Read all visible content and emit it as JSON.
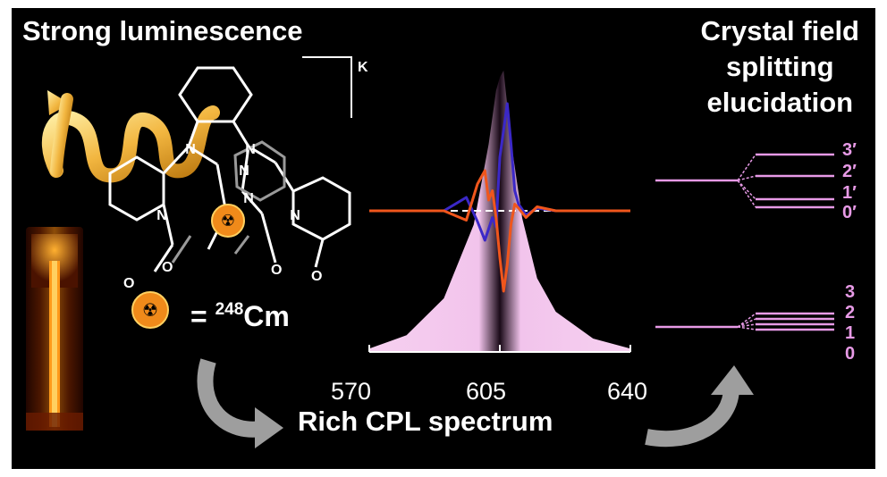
{
  "headings": {
    "left": "Strong luminescence",
    "right_lines": [
      "Crystal field",
      "splitting",
      "elucidation"
    ],
    "bottom": "Rich CPL spectrum"
  },
  "structure": {
    "counterion": "K",
    "element_label_prefix": "= ",
    "isotope_mass": "248",
    "element_symbol": "Cm",
    "atom_labels": [
      "N",
      "N",
      "N",
      "N",
      "N",
      "N"
    ],
    "oxygen_label": "O"
  },
  "chart_data": {
    "type": "line",
    "x_ticks": [
      "570",
      "605",
      "640"
    ],
    "xlim": [
      570,
      640
    ],
    "ylim": [
      -1,
      1
    ],
    "series": [
      {
        "role": "emission",
        "color": "#f2c9ee",
        "x": [
          570,
          580,
          590,
          598,
          602,
          604,
          605,
          606,
          608,
          611,
          615,
          620,
          630,
          640
        ],
        "values": [
          0.01,
          0.05,
          0.16,
          0.38,
          0.62,
          0.78,
          0.82,
          0.84,
          0.63,
          0.4,
          0.22,
          0.12,
          0.04,
          0.01
        ]
      },
      {
        "role": "cpl-blue",
        "color": "#3b28c8",
        "x": [
          570,
          590,
          596,
          599,
          601,
          603,
          604,
          605,
          606,
          607,
          608,
          609,
          610,
          612,
          615,
          620,
          640
        ],
        "values": [
          0,
          0,
          0.1,
          -0.08,
          -0.22,
          -0.05,
          -0.12,
          0.4,
          0.6,
          0.8,
          0.5,
          0.15,
          0.05,
          -0.03,
          0.02,
          0,
          0
        ]
      },
      {
        "role": "cpl-orange",
        "color": "#f0561c",
        "x": [
          570,
          590,
          596,
          599,
          601,
          602,
          603,
          604,
          605,
          606,
          607,
          608,
          609,
          610,
          612,
          615,
          620,
          640
        ],
        "values": [
          0,
          0,
          -0.07,
          0.2,
          0.3,
          0.08,
          0.15,
          -0.05,
          -0.35,
          -0.6,
          -0.4,
          -0.1,
          0.05,
          0.02,
          -0.05,
          0.03,
          0,
          0
        ]
      }
    ]
  },
  "energy_levels": {
    "upper_labels": [
      "3′",
      "2′",
      "1′",
      "0′"
    ],
    "lower_labels": [
      "3",
      "2",
      "1",
      "0"
    ],
    "color": "#e79ae6"
  }
}
